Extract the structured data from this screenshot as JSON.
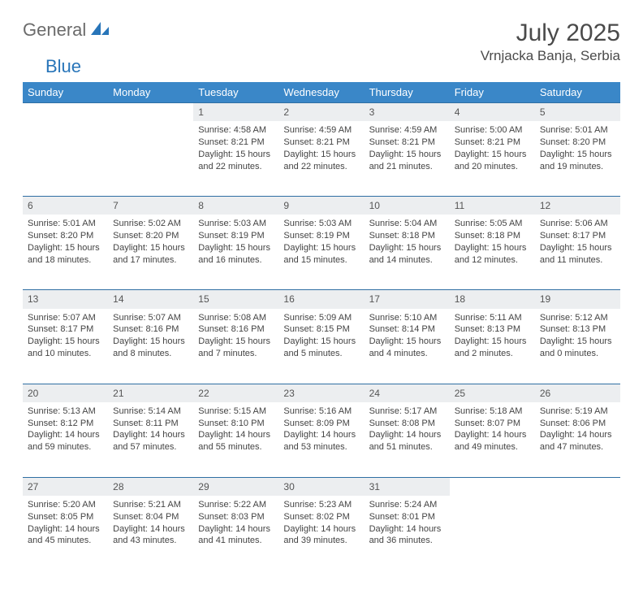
{
  "brand": {
    "word1": "General",
    "word2": "Blue"
  },
  "title": "July 2025",
  "location": "Vrnjacka Banja, Serbia",
  "colors": {
    "header_bg": "#3a87c8",
    "header_text": "#ffffff",
    "daynum_bg": "#eceef0",
    "border": "#2f6fa3",
    "text": "#444444",
    "title_text": "#4a4a4a",
    "logo_gray": "#6b6b6b",
    "logo_blue": "#2875b9",
    "page_bg": "#ffffff"
  },
  "typography": {
    "title_fontsize": 30,
    "location_fontsize": 17,
    "dayheader_fontsize": 13,
    "daynum_fontsize": 12,
    "cell_fontsize": 11
  },
  "day_headers": [
    "Sunday",
    "Monday",
    "Tuesday",
    "Wednesday",
    "Thursday",
    "Friday",
    "Saturday"
  ],
  "weeks": [
    {
      "nums": [
        "",
        "",
        "1",
        "2",
        "3",
        "4",
        "5"
      ],
      "cells": [
        null,
        null,
        {
          "sunrise": "Sunrise: 4:58 AM",
          "sunset": "Sunset: 8:21 PM",
          "daylight": "Daylight: 15 hours and 22 minutes."
        },
        {
          "sunrise": "Sunrise: 4:59 AM",
          "sunset": "Sunset: 8:21 PM",
          "daylight": "Daylight: 15 hours and 22 minutes."
        },
        {
          "sunrise": "Sunrise: 4:59 AM",
          "sunset": "Sunset: 8:21 PM",
          "daylight": "Daylight: 15 hours and 21 minutes."
        },
        {
          "sunrise": "Sunrise: 5:00 AM",
          "sunset": "Sunset: 8:21 PM",
          "daylight": "Daylight: 15 hours and 20 minutes."
        },
        {
          "sunrise": "Sunrise: 5:01 AM",
          "sunset": "Sunset: 8:20 PM",
          "daylight": "Daylight: 15 hours and 19 minutes."
        }
      ]
    },
    {
      "nums": [
        "6",
        "7",
        "8",
        "9",
        "10",
        "11",
        "12"
      ],
      "cells": [
        {
          "sunrise": "Sunrise: 5:01 AM",
          "sunset": "Sunset: 8:20 PM",
          "daylight": "Daylight: 15 hours and 18 minutes."
        },
        {
          "sunrise": "Sunrise: 5:02 AM",
          "sunset": "Sunset: 8:20 PM",
          "daylight": "Daylight: 15 hours and 17 minutes."
        },
        {
          "sunrise": "Sunrise: 5:03 AM",
          "sunset": "Sunset: 8:19 PM",
          "daylight": "Daylight: 15 hours and 16 minutes."
        },
        {
          "sunrise": "Sunrise: 5:03 AM",
          "sunset": "Sunset: 8:19 PM",
          "daylight": "Daylight: 15 hours and 15 minutes."
        },
        {
          "sunrise": "Sunrise: 5:04 AM",
          "sunset": "Sunset: 8:18 PM",
          "daylight": "Daylight: 15 hours and 14 minutes."
        },
        {
          "sunrise": "Sunrise: 5:05 AM",
          "sunset": "Sunset: 8:18 PM",
          "daylight": "Daylight: 15 hours and 12 minutes."
        },
        {
          "sunrise": "Sunrise: 5:06 AM",
          "sunset": "Sunset: 8:17 PM",
          "daylight": "Daylight: 15 hours and 11 minutes."
        }
      ]
    },
    {
      "nums": [
        "13",
        "14",
        "15",
        "16",
        "17",
        "18",
        "19"
      ],
      "cells": [
        {
          "sunrise": "Sunrise: 5:07 AM",
          "sunset": "Sunset: 8:17 PM",
          "daylight": "Daylight: 15 hours and 10 minutes."
        },
        {
          "sunrise": "Sunrise: 5:07 AM",
          "sunset": "Sunset: 8:16 PM",
          "daylight": "Daylight: 15 hours and 8 minutes."
        },
        {
          "sunrise": "Sunrise: 5:08 AM",
          "sunset": "Sunset: 8:16 PM",
          "daylight": "Daylight: 15 hours and 7 minutes."
        },
        {
          "sunrise": "Sunrise: 5:09 AM",
          "sunset": "Sunset: 8:15 PM",
          "daylight": "Daylight: 15 hours and 5 minutes."
        },
        {
          "sunrise": "Sunrise: 5:10 AM",
          "sunset": "Sunset: 8:14 PM",
          "daylight": "Daylight: 15 hours and 4 minutes."
        },
        {
          "sunrise": "Sunrise: 5:11 AM",
          "sunset": "Sunset: 8:13 PM",
          "daylight": "Daylight: 15 hours and 2 minutes."
        },
        {
          "sunrise": "Sunrise: 5:12 AM",
          "sunset": "Sunset: 8:13 PM",
          "daylight": "Daylight: 15 hours and 0 minutes."
        }
      ]
    },
    {
      "nums": [
        "20",
        "21",
        "22",
        "23",
        "24",
        "25",
        "26"
      ],
      "cells": [
        {
          "sunrise": "Sunrise: 5:13 AM",
          "sunset": "Sunset: 8:12 PM",
          "daylight": "Daylight: 14 hours and 59 minutes."
        },
        {
          "sunrise": "Sunrise: 5:14 AM",
          "sunset": "Sunset: 8:11 PM",
          "daylight": "Daylight: 14 hours and 57 minutes."
        },
        {
          "sunrise": "Sunrise: 5:15 AM",
          "sunset": "Sunset: 8:10 PM",
          "daylight": "Daylight: 14 hours and 55 minutes."
        },
        {
          "sunrise": "Sunrise: 5:16 AM",
          "sunset": "Sunset: 8:09 PM",
          "daylight": "Daylight: 14 hours and 53 minutes."
        },
        {
          "sunrise": "Sunrise: 5:17 AM",
          "sunset": "Sunset: 8:08 PM",
          "daylight": "Daylight: 14 hours and 51 minutes."
        },
        {
          "sunrise": "Sunrise: 5:18 AM",
          "sunset": "Sunset: 8:07 PM",
          "daylight": "Daylight: 14 hours and 49 minutes."
        },
        {
          "sunrise": "Sunrise: 5:19 AM",
          "sunset": "Sunset: 8:06 PM",
          "daylight": "Daylight: 14 hours and 47 minutes."
        }
      ]
    },
    {
      "nums": [
        "27",
        "28",
        "29",
        "30",
        "31",
        "",
        ""
      ],
      "cells": [
        {
          "sunrise": "Sunrise: 5:20 AM",
          "sunset": "Sunset: 8:05 PM",
          "daylight": "Daylight: 14 hours and 45 minutes."
        },
        {
          "sunrise": "Sunrise: 5:21 AM",
          "sunset": "Sunset: 8:04 PM",
          "daylight": "Daylight: 14 hours and 43 minutes."
        },
        {
          "sunrise": "Sunrise: 5:22 AM",
          "sunset": "Sunset: 8:03 PM",
          "daylight": "Daylight: 14 hours and 41 minutes."
        },
        {
          "sunrise": "Sunrise: 5:23 AM",
          "sunset": "Sunset: 8:02 PM",
          "daylight": "Daylight: 14 hours and 39 minutes."
        },
        {
          "sunrise": "Sunrise: 5:24 AM",
          "sunset": "Sunset: 8:01 PM",
          "daylight": "Daylight: 14 hours and 36 minutes."
        },
        null,
        null
      ]
    }
  ]
}
